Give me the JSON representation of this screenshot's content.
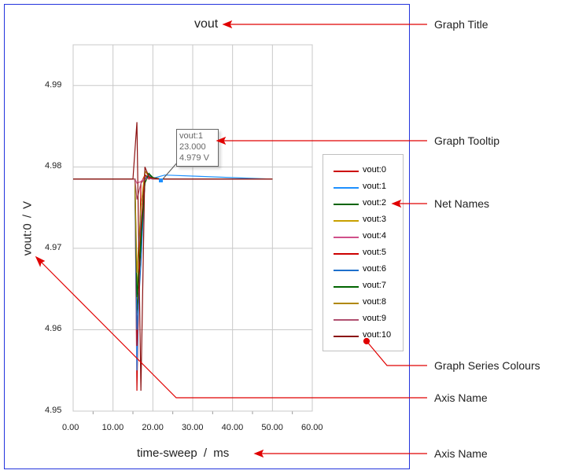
{
  "graph": {
    "title": "vout",
    "xlabel": "time-sweep /   ms",
    "ylabel": "vout:0 / V",
    "tooltip": {
      "series": "vout:1",
      "x": "23.000",
      "y": "4.979  V"
    }
  },
  "chart_data": {
    "type": "line",
    "title": "vout",
    "xlabel": "time-sweep /   ms",
    "ylabel": "vout:0 / V",
    "xlim": [
      0,
      60
    ],
    "ylim": [
      4.95,
      4.995
    ],
    "grid": true,
    "legend": "right",
    "xticks": [
      "0.00",
      "10.00",
      "20.00",
      "30.00",
      "40.00",
      "50.00",
      "60.00"
    ],
    "yticks": [
      "4.95",
      "4.96",
      "4.97",
      "4.98",
      "4.99"
    ],
    "series": [
      {
        "name": "vout:0",
        "color": "#cc0000",
        "x": [
          0,
          15.5,
          16,
          17,
          18,
          19,
          20,
          22,
          50
        ],
        "y": [
          4.9785,
          4.9785,
          4.9525,
          4.978,
          4.979,
          4.9785,
          4.9787,
          4.9785,
          4.9785
        ]
      },
      {
        "name": "vout:1",
        "color": "#1e90ff",
        "x": [
          0,
          15.5,
          16,
          17,
          18,
          19,
          20,
          23,
          50
        ],
        "y": [
          4.9785,
          4.9785,
          4.955,
          4.975,
          4.979,
          4.9788,
          4.9786,
          4.979,
          4.9785
        ]
      },
      {
        "name": "vout:2",
        "color": "#006400",
        "x": [
          0,
          15.5,
          16,
          17,
          18,
          19,
          20,
          22,
          50
        ],
        "y": [
          4.9785,
          4.9785,
          4.962,
          4.97,
          4.978,
          4.9792,
          4.9787,
          4.9785,
          4.9785
        ]
      },
      {
        "name": "vout:3",
        "color": "#c8a000",
        "x": [
          0,
          15.5,
          16,
          17,
          18,
          19,
          20,
          22,
          50
        ],
        "y": [
          4.9785,
          4.9785,
          4.965,
          4.972,
          4.9795,
          4.979,
          4.9786,
          4.9785,
          4.9785
        ]
      },
      {
        "name": "vout:4",
        "color": "#d0508a",
        "x": [
          0,
          15.5,
          16,
          17,
          18,
          19,
          20,
          22,
          50
        ],
        "y": [
          4.9785,
          4.9785,
          4.978,
          4.9782,
          4.9787,
          4.9786,
          4.9785,
          4.9785,
          4.9785
        ]
      },
      {
        "name": "vout:5",
        "color": "#cc0000",
        "x": [
          0,
          15.5,
          16,
          17,
          18,
          19,
          20,
          22,
          50
        ],
        "y": [
          4.9785,
          4.9785,
          4.958,
          4.9725,
          4.979,
          4.9787,
          4.9786,
          4.9785,
          4.9785
        ]
      },
      {
        "name": "vout:6",
        "color": "#1e70cc",
        "x": [
          0,
          15.5,
          16,
          17,
          18,
          19,
          20,
          22,
          50
        ],
        "y": [
          4.9785,
          4.9785,
          4.96,
          4.968,
          4.9785,
          4.979,
          4.9786,
          4.9785,
          4.9785
        ]
      },
      {
        "name": "vout:7",
        "color": "#006400",
        "x": [
          0,
          15.5,
          16,
          17,
          18,
          19,
          20,
          22,
          50
        ],
        "y": [
          4.9785,
          4.9785,
          4.964,
          4.971,
          4.978,
          4.9792,
          4.9786,
          4.9785,
          4.9785
        ]
      },
      {
        "name": "vout:8",
        "color": "#b08800",
        "x": [
          0,
          15.5,
          16,
          17,
          18,
          19,
          20,
          22,
          50
        ],
        "y": [
          4.9785,
          4.9785,
          4.967,
          4.975,
          4.9795,
          4.9788,
          4.9786,
          4.9785,
          4.9785
        ]
      },
      {
        "name": "vout:9",
        "color": "#b05070",
        "x": [
          0,
          15.5,
          16,
          17,
          18,
          19,
          20,
          22,
          50
        ],
        "y": [
          4.9785,
          4.9785,
          4.976,
          4.978,
          4.9785,
          4.9786,
          4.9785,
          4.9785,
          4.9785
        ]
      },
      {
        "name": "vout:10",
        "color": "#8b1010",
        "x": [
          0,
          15,
          16,
          17,
          18,
          19,
          20,
          22,
          50
        ],
        "y": [
          4.9785,
          4.9785,
          4.9855,
          4.9525,
          4.98,
          4.9788,
          4.9786,
          4.9785,
          4.9785
        ]
      }
    ]
  },
  "annotations": {
    "graph_title": "Graph Title",
    "graph_tooltip": "Graph Tooltip",
    "net_names": "Net Names",
    "series_colours": "Graph Series Colours",
    "axis_name_y": "Axis Name",
    "axis_name_x": "Axis Name"
  }
}
